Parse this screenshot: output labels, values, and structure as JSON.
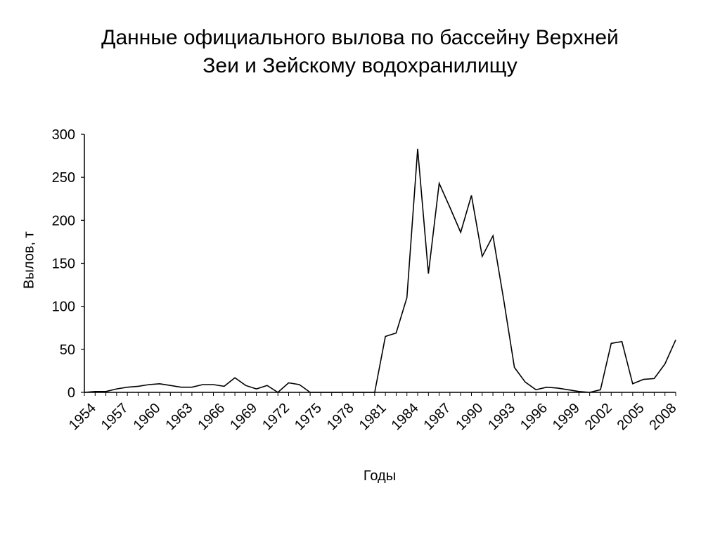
{
  "chart_data": {
    "type": "line",
    "title": "Данные официального вылова по бассейну Верхней Зеи и Зейскому водохранилищу",
    "title_lines": [
      "Данные официального вылова по бассейну Верхней",
      "Зеи и Зейскому водохранилищу"
    ],
    "xlabel": "Годы",
    "ylabel": "Вылов, т",
    "ylim": [
      0,
      300
    ],
    "yticks": [
      0,
      50,
      100,
      150,
      200,
      250,
      300
    ],
    "xtick_labels": [
      "1954",
      "1957",
      "1960",
      "1963",
      "1966",
      "1969",
      "1972",
      "1975",
      "1978",
      "1981",
      "1984",
      "1987",
      "1990",
      "1993",
      "1996",
      "1999",
      "2002",
      "2005",
      "2008"
    ],
    "x": [
      1954,
      1955,
      1956,
      1957,
      1958,
      1959,
      1960,
      1961,
      1962,
      1963,
      1964,
      1965,
      1966,
      1967,
      1968,
      1969,
      1970,
      1971,
      1972,
      1973,
      1974,
      1975,
      1976,
      1977,
      1978,
      1979,
      1980,
      1981,
      1982,
      1983,
      1984,
      1985,
      1986,
      1987,
      1988,
      1989,
      1990,
      1991,
      1992,
      1993,
      1994,
      1995,
      1996,
      1997,
      1998,
      1999,
      2000,
      2001,
      2002,
      2003,
      2004,
      2005,
      2006,
      2007,
      2008,
      2009
    ],
    "values": [
      0,
      1,
      1,
      4,
      6,
      7,
      9,
      10,
      8,
      6,
      6,
      9,
      9,
      7,
      17,
      8,
      4,
      8,
      0,
      11,
      9,
      0,
      0,
      0,
      0,
      0,
      0,
      0,
      65,
      69,
      110,
      283,
      138,
      243,
      215,
      186,
      229,
      158,
      182,
      108,
      29,
      12,
      3,
      6,
      5,
      3,
      1,
      0,
      3,
      57,
      59,
      10,
      15,
      16,
      33,
      61
    ],
    "grid": false,
    "legend": "none",
    "line_color": "#000000"
  }
}
